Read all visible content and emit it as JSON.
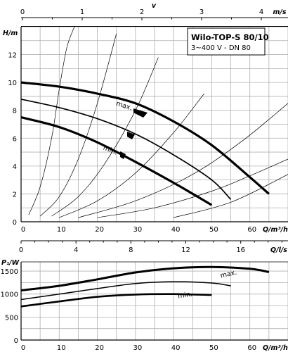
{
  "chart_data": [
    {
      "type": "line",
      "title": "Wilo-TOP-S 80/10",
      "subtitle": "3~400 V - DN 80",
      "xlabel": "Q/m³/h",
      "ylabel": "H/m",
      "xlim": [
        0,
        70
      ],
      "ylim": [
        0,
        14
      ],
      "x_ticks": [
        "0",
        "10",
        "20",
        "30",
        "40",
        "50",
        "60",
        "70"
      ],
      "y_ticks": [
        "0",
        "2",
        "4",
        "6",
        "8",
        "10",
        "12"
      ],
      "grid": true,
      "top_axes": [
        {
          "label": "v",
          "unit": "m/s",
          "max": 5,
          "ticks": [
            "0",
            "1",
            "2",
            "3",
            "4"
          ]
        }
      ],
      "bottom_axes": [
        {
          "label": "Q/l/s",
          "max": 20,
          "ticks": [
            "0",
            "4",
            "8",
            "12",
            "16",
            "20"
          ]
        }
      ],
      "series": [
        {
          "name": "max.",
          "x": [
            0,
            10,
            20,
            30,
            40,
            50,
            60,
            65
          ],
          "y": [
            10.0,
            9.7,
            9.2,
            8.5,
            7.2,
            5.5,
            3.2,
            2.0
          ]
        },
        {
          "name": "",
          "x": [
            0,
            10,
            20,
            30,
            40,
            50,
            55
          ],
          "y": [
            8.8,
            8.2,
            7.4,
            6.3,
            4.8,
            3.0,
            1.6
          ]
        },
        {
          "name": "min.",
          "x": [
            0,
            10,
            20,
            30,
            40,
            50
          ],
          "y": [
            7.5,
            6.8,
            5.7,
            4.3,
            2.8,
            1.2
          ]
        }
      ],
      "system_curves": [
        {
          "x": [
            2,
            5,
            8,
            10,
            12,
            14
          ],
          "y": [
            0.5,
            2.5,
            6.0,
            9.5,
            12.5,
            14.0
          ]
        },
        {
          "x": [
            5,
            10,
            15,
            20,
            25
          ],
          "y": [
            0.4,
            1.8,
            4.5,
            8.5,
            13.5
          ]
        },
        {
          "x": [
            8,
            15,
            22,
            30,
            36
          ],
          "y": [
            0.4,
            1.8,
            4.2,
            8.0,
            11.8
          ]
        },
        {
          "x": [
            10,
            20,
            30,
            40,
            48
          ],
          "y": [
            0.3,
            1.5,
            3.5,
            6.4,
            9.2
          ]
        },
        {
          "x": [
            15,
            30,
            45,
            58,
            70
          ],
          "y": [
            0.3,
            1.5,
            3.4,
            5.8,
            8.5
          ]
        },
        {
          "x": [
            20,
            35,
            50,
            60,
            70
          ],
          "y": [
            0.3,
            1.0,
            2.2,
            3.3,
            4.5
          ]
        },
        {
          "x": [
            40,
            55,
            70
          ],
          "y": [
            0.3,
            1.4,
            3.4
          ]
        }
      ],
      "annotations": [
        "max.",
        "min."
      ]
    },
    {
      "type": "line",
      "xlabel": "Q/m³/h",
      "ylabel": "P₁/W",
      "xlim": [
        0,
        70
      ],
      "ylim": [
        0,
        1700
      ],
      "x_ticks": [
        "0",
        "10",
        "20",
        "30",
        "40",
        "50",
        "60",
        "70"
      ],
      "y_ticks": [
        "0",
        "500",
        "1000",
        "1500"
      ],
      "grid": true,
      "series": [
        {
          "name": "max.",
          "x": [
            0,
            10,
            20,
            30,
            40,
            50,
            60,
            65
          ],
          "y": [
            1080,
            1180,
            1320,
            1470,
            1560,
            1590,
            1550,
            1480
          ]
        },
        {
          "name": "min.",
          "x": [
            0,
            10,
            20,
            30,
            40,
            50
          ],
          "y": [
            730,
            840,
            940,
            990,
            1000,
            980
          ]
        },
        {
          "name": "",
          "x": [
            0,
            10,
            20,
            30,
            40,
            50,
            55
          ],
          "y": [
            880,
            1000,
            1120,
            1230,
            1270,
            1240,
            1180
          ]
        }
      ]
    }
  ]
}
